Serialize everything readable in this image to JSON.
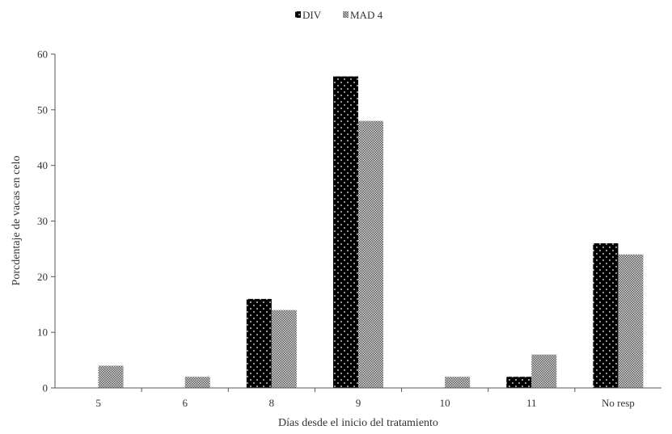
{
  "chart_data": {
    "type": "bar",
    "categories": [
      "5",
      "6",
      "8",
      "9",
      "10",
      "11",
      "No resp"
    ],
    "series": [
      {
        "name": "DIV",
        "values": [
          0,
          0,
          16,
          56,
          0,
          2,
          26
        ],
        "color": "#000000"
      },
      {
        "name": "MAD 4",
        "values": [
          4,
          2,
          14,
          48,
          2,
          6,
          24
        ],
        "color": "#9a9a9a"
      }
    ],
    "yticks": [
      "0",
      "10",
      "20",
      "30",
      "40",
      "50",
      "60"
    ],
    "ylim": [
      0,
      60
    ],
    "xlabel": "Días desde el inicio del tratamiento",
    "ylabel": "Porcdentaje de vacas en celo",
    "legend": {
      "position": "top-center",
      "entries": [
        "DIV",
        "MAD 4"
      ]
    },
    "grid": false
  }
}
